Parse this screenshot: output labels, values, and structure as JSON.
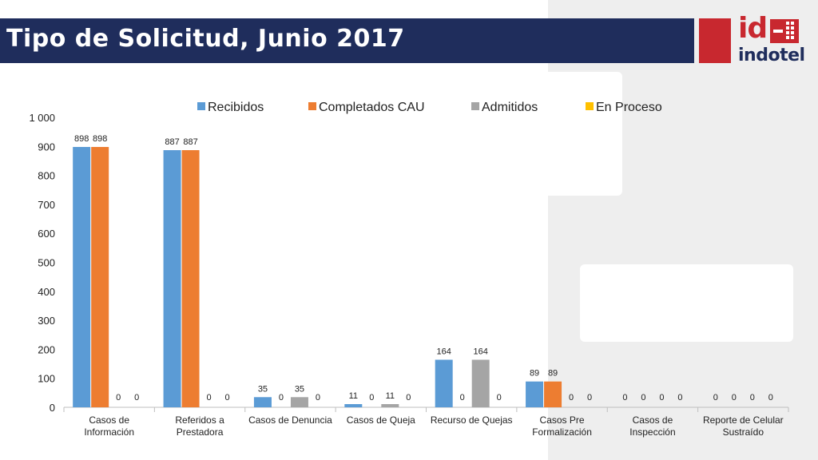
{
  "header": {
    "title": "Tipo de Solicitud, Junio 2017",
    "logo_top": "id",
    "logo_word": "indotel"
  },
  "colors": {
    "title_bar": "#1f2d5c",
    "brand_red": "#c8282f",
    "recibidos": "#5b9bd5",
    "completados": "#ed7d31",
    "admitidos": "#a5a5a5",
    "en_proceso": "#ffc000"
  },
  "chart_data": {
    "type": "bar",
    "categories": [
      [
        "Casos de",
        "Información"
      ],
      [
        "Referidos a",
        "Prestadora"
      ],
      [
        "Casos de Denuncia"
      ],
      [
        "Casos de Queja"
      ],
      [
        "Recurso de Quejas"
      ],
      [
        "Casos Pre",
        "Formalización"
      ],
      [
        "Casos de",
        "Inspección"
      ],
      [
        "Reporte de Celular",
        "Sustraído"
      ]
    ],
    "series": [
      {
        "name": "Recibidos",
        "values": [
          898,
          887,
          35,
          11,
          164,
          89,
          0,
          0
        ],
        "labels": [
          true,
          true,
          true,
          true,
          true,
          true,
          true,
          true
        ]
      },
      {
        "name": "Completados CAU",
        "values": [
          898,
          887,
          0,
          0,
          0,
          89,
          0,
          0
        ],
        "labels": [
          true,
          true,
          true,
          true,
          true,
          true,
          true,
          true
        ]
      },
      {
        "name": "Admitidos",
        "values": [
          0,
          0,
          35,
          11,
          164,
          0,
          0,
          0
        ],
        "labels": [
          true,
          true,
          true,
          true,
          true,
          true,
          true,
          true
        ]
      },
      {
        "name": "En Proceso",
        "values": [
          0,
          0,
          0,
          0,
          0,
          0,
          0,
          0
        ],
        "labels": [
          true,
          true,
          true,
          true,
          true,
          true,
          true,
          true
        ]
      }
    ],
    "ylim": [
      0,
      1000
    ],
    "yticks": [
      0,
      100,
      200,
      300,
      400,
      500,
      600,
      700,
      800,
      900,
      1000
    ],
    "ytick_labels": [
      "0",
      "100",
      "200",
      "300",
      "400",
      "500",
      "600",
      "700",
      "800",
      "900",
      "1 000"
    ],
    "legend_position": "top",
    "grid": false
  }
}
